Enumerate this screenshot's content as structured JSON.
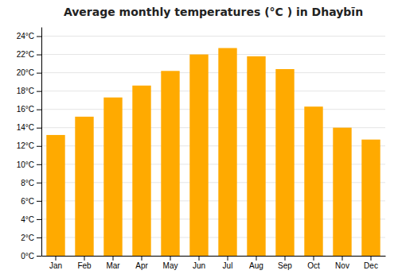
{
  "chart_data": {
    "type": "bar",
    "title": "Average monthly temperatures (°C ) in Dhaybīn",
    "categories": [
      "Jan",
      "Feb",
      "Mar",
      "Apr",
      "May",
      "Jun",
      "Jul",
      "Aug",
      "Sep",
      "Oct",
      "Nov",
      "Dec"
    ],
    "values": [
      13.2,
      15.2,
      17.3,
      18.6,
      20.2,
      22.0,
      22.7,
      21.8,
      20.4,
      16.3,
      14.0,
      12.7
    ],
    "color": "#FFAA00",
    "ylim": [
      0,
      25
    ],
    "yticks": [
      {
        "value": 0,
        "label": "0°C"
      },
      {
        "value": 2,
        "label": "2°C"
      },
      {
        "value": 4,
        "label": "4°C"
      },
      {
        "value": 6,
        "label": "6°C"
      },
      {
        "value": 8,
        "label": "8°C"
      },
      {
        "value": 10,
        "label": "10°C"
      },
      {
        "value": 12,
        "label": "12°C"
      },
      {
        "value": 14,
        "label": "14°C"
      },
      {
        "value": 16,
        "label": "16°C"
      },
      {
        "value": 18,
        "label": "18°C"
      },
      {
        "value": 20,
        "label": "20°C"
      },
      {
        "value": 22,
        "label": "22°C"
      },
      {
        "value": 24,
        "label": "24°C"
      }
    ],
    "grid": true
  }
}
